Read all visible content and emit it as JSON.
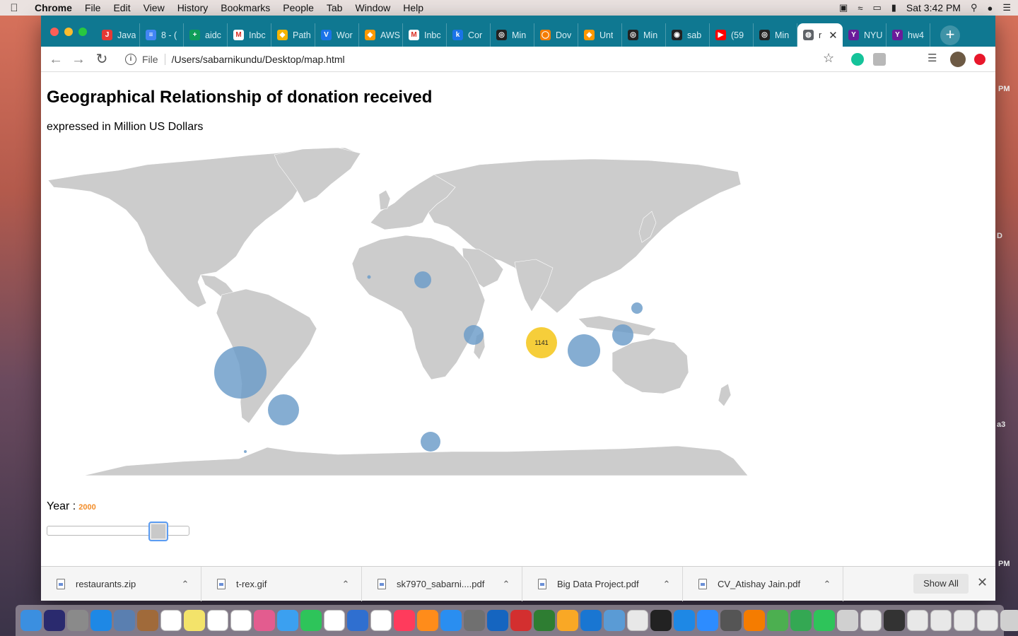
{
  "menubar": {
    "app": "Chrome",
    "items": [
      "File",
      "Edit",
      "View",
      "History",
      "Bookmarks",
      "People",
      "Tab",
      "Window",
      "Help"
    ],
    "clock": "Sat 3:42 PM"
  },
  "desktop": {
    "side_texts": [
      "PM",
      "D",
      "a3",
      "PM"
    ]
  },
  "tabs": [
    {
      "label": "Java",
      "color": "#e53935",
      "glyph": "J"
    },
    {
      "label": "8 - (",
      "color": "#4285f4",
      "glyph": "≡"
    },
    {
      "label": "aidc",
      "color": "#0f9d58",
      "glyph": "+"
    },
    {
      "label": "Inbc",
      "color": "#ffffff",
      "glyph": "M"
    },
    {
      "label": "Path",
      "color": "#f4b400",
      "glyph": "◆"
    },
    {
      "label": "Wor",
      "color": "#1a73e8",
      "glyph": "V"
    },
    {
      "label": "AWS",
      "color": "#ff9900",
      "glyph": "◆"
    },
    {
      "label": "Inbc",
      "color": "#ffffff",
      "glyph": "M"
    },
    {
      "label": "Cor",
      "color": "#1a73e8",
      "glyph": "k"
    },
    {
      "label": "Min",
      "color": "#222222",
      "glyph": "◎"
    },
    {
      "label": "Dov",
      "color": "#f57c00",
      "glyph": "◯"
    },
    {
      "label": "Unt",
      "color": "#ff9800",
      "glyph": "◆"
    },
    {
      "label": "Min",
      "color": "#222222",
      "glyph": "◎"
    },
    {
      "label": "sab",
      "color": "#222222",
      "glyph": "◉"
    },
    {
      "label": "(59",
      "color": "#ff0000",
      "glyph": "▶"
    },
    {
      "label": "Min",
      "color": "#222222",
      "glyph": "◎"
    },
    {
      "label": "r",
      "color": "#5f6368",
      "glyph": "◍",
      "active": true
    },
    {
      "label": "NYU",
      "color": "#6a1b9a",
      "glyph": "Y"
    },
    {
      "label": "hw4",
      "color": "#6a1b9a",
      "glyph": "Y"
    }
  ],
  "address": {
    "scheme": "File",
    "path": "/Users/sabarnikundu/Desktop/map.html"
  },
  "page": {
    "title": "Geographical Relationship of donation received",
    "subtitle": "expressed in Million US Dollars",
    "year_label": "Year :",
    "year_value": "2000",
    "slider_fraction": 0.83
  },
  "map_data": {
    "fill": "#cccccc",
    "bubble_color": "#6a9bc8",
    "highlight_color": "#f5c518",
    "highlight_label": "1141"
  },
  "downloads": [
    {
      "name": "restaurants.zip"
    },
    {
      "name": "t-rex.gif"
    },
    {
      "name": "sk7970_sabarni....pdf"
    },
    {
      "name": "Big Data Project.pdf"
    },
    {
      "name": "CV_Atishay Jain.pdf"
    }
  ],
  "shelf": {
    "show_all": "Show All"
  },
  "dock_colors": [
    "#3b8fe0",
    "#2a2a6e",
    "#8a8a8a",
    "#1e88e5",
    "#5a7fb0",
    "#a06a3a",
    "#ffffff",
    "#f3e36a",
    "#ffffff",
    "#ffffff",
    "#e35c8f",
    "#3ba0f0",
    "#2ec45a",
    "#ffffff",
    "#2f6fd0",
    "#ffffff",
    "#ff3b5c",
    "#ff8c1a",
    "#2a8ef0",
    "#707070",
    "#1565c0",
    "#d32f2f",
    "#2e7d32",
    "#f9a825",
    "#1976d2",
    "#5a9bd5",
    "#e8e8e8",
    "#222222",
    "#1e88e5",
    "#2d8cff",
    "#555555",
    "#f57c00",
    "#4caf50",
    "#34a853",
    "#2ec45a",
    "#d0d0d0",
    "#e8e8e8",
    "#333333",
    "#e8e8e8",
    "#e8e8e8",
    "#e8e8e8",
    "#e8e8e8",
    "#d0d0d0"
  ]
}
